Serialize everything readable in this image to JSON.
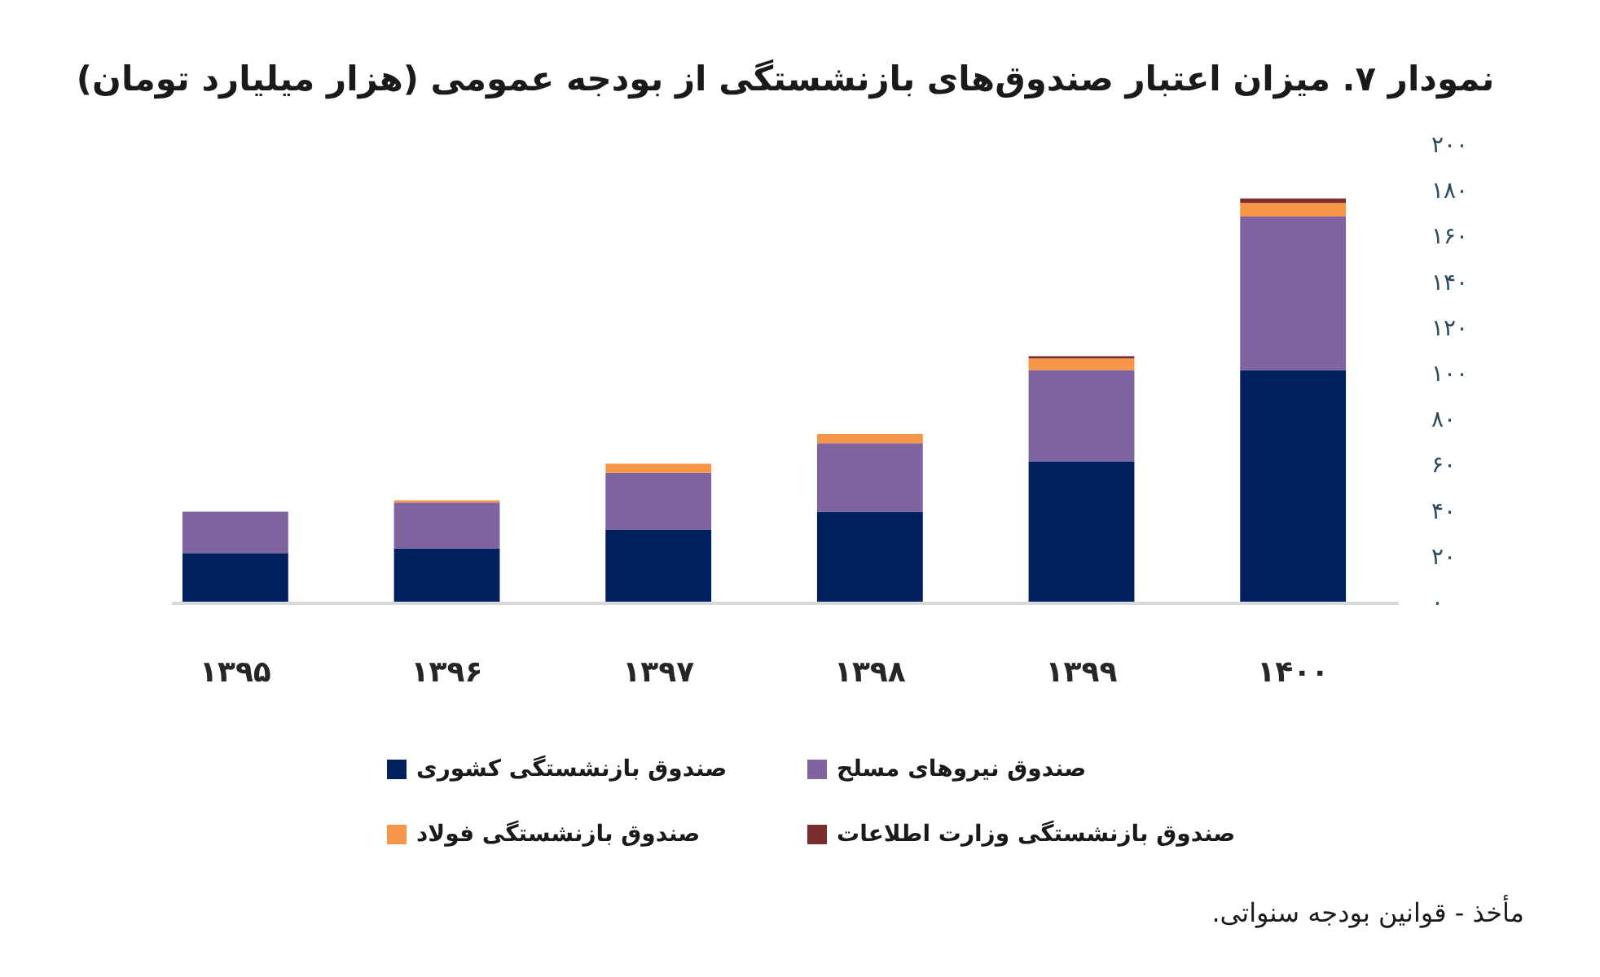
{
  "chart_data": {
    "type": "bar",
    "stacked": true,
    "title": "نمودار ۷. میزان اعتبار صندوق‌های بازنشستگی از بودجه عمومی (هزار میلیارد تومان)",
    "annotations": [
      "مأخذ - قوانین بودجه سنواتی."
    ],
    "categories": [
      "۱۳۹۵",
      "۱۳۹۶",
      "۱۳۹۷",
      "۱۳۹۸",
      "۱۳۹۹",
      "۱۴۰۰"
    ],
    "series": [
      {
        "name": "صندوق بازنشستگی کشوری",
        "color": "#002060",
        "values": [
          22,
          24,
          32,
          40,
          62,
          102
        ]
      },
      {
        "name": "صندوق نیروهای مسلح",
        "color": "#8064a2",
        "values": [
          18,
          20,
          25,
          30,
          40,
          67
        ]
      },
      {
        "name": "صندوق بازنشستگی فولاد",
        "color": "#f79646",
        "values": [
          null,
          1,
          4,
          4,
          5,
          6
        ]
      },
      {
        "name": "صندوق بازنشستگی وزارت اطلاعات",
        "color": "#7b2c2c",
        "values": [
          null,
          null,
          null,
          null,
          1,
          2
        ]
      }
    ],
    "ylim": [
      0,
      200
    ],
    "yticks": [
      {
        "value": 0,
        "label": "۰"
      },
      {
        "value": 20,
        "label": "۲۰"
      },
      {
        "value": 40,
        "label": "۴۰"
      },
      {
        "value": 60,
        "label": "۶۰"
      },
      {
        "value": 80,
        "label": "۸۰"
      },
      {
        "value": 100,
        "label": "۱۰۰"
      },
      {
        "value": 120,
        "label": "۱۲۰"
      },
      {
        "value": 140,
        "label": "۱۴۰"
      },
      {
        "value": 160,
        "label": "۱۶۰"
      },
      {
        "value": 180,
        "label": "۱۸۰"
      },
      {
        "value": 200,
        "label": "۲۰۰"
      }
    ],
    "legend": "bottom"
  }
}
